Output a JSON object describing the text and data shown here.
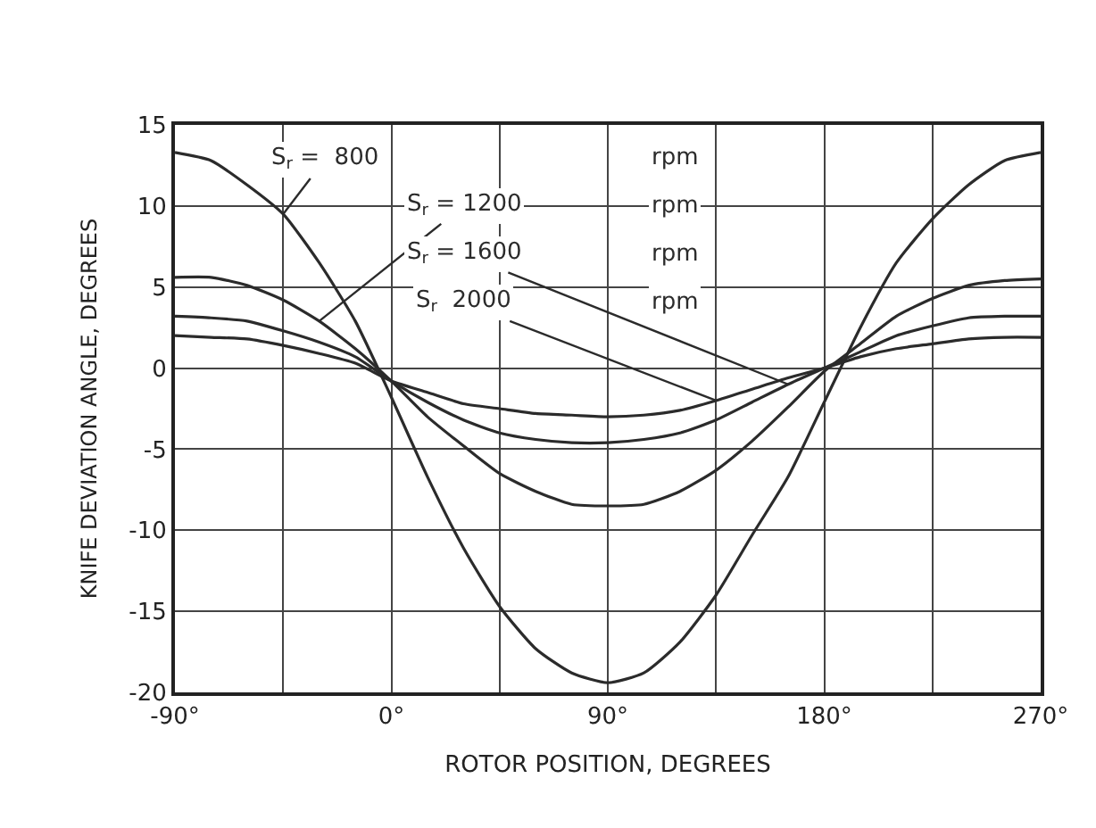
{
  "chart_data": {
    "type": "line",
    "xlabel": "ROTOR POSITION, DEGREES",
    "ylabel": "KNIFE DEVIATION ANGLE, DEGREES",
    "x": [
      -90,
      -75,
      -60,
      -45,
      -30,
      -15,
      0,
      15,
      30,
      45,
      60,
      75,
      90,
      105,
      120,
      135,
      150,
      165,
      180,
      195,
      210,
      225,
      240,
      255,
      270
    ],
    "series": [
      {
        "name": "S$_{r}$ =  800",
        "color": "#2b2b2b",
        "values": [
          13.3,
          12.8,
          11.3,
          9.5,
          6.5,
          2.9,
          -1.8,
          -6.7,
          -11.1,
          -14.7,
          -17.3,
          -18.8,
          -19.4,
          -18.8,
          -16.9,
          -14.0,
          -10.3,
          -6.7,
          -2.1,
          2.5,
          6.5,
          9.2,
          11.3,
          12.8,
          13.3
        ]
      },
      {
        "name": "S$_{r}$ = 1200",
        "color": "#2b2b2b",
        "values": [
          5.6,
          5.6,
          5.1,
          4.2,
          2.9,
          1.2,
          -0.8,
          -3.0,
          -4.8,
          -6.5,
          -7.6,
          -8.4,
          -8.5,
          -8.4,
          -7.6,
          -6.3,
          -4.5,
          -2.4,
          -0.2,
          1.5,
          3.2,
          4.3,
          5.1,
          5.4,
          5.5
        ]
      },
      {
        "name": "S$_{r}$ = 1600",
        "color": "#2b2b2b",
        "values": [
          3.2,
          3.1,
          2.9,
          2.3,
          1.6,
          0.7,
          -0.8,
          -2.1,
          -3.2,
          -4.0,
          -4.4,
          -4.6,
          -4.6,
          -4.4,
          -4.0,
          -3.2,
          -2.1,
          -1.0,
          0.0,
          1.0,
          2.0,
          2.6,
          3.1,
          3.2,
          3.2
        ]
      },
      {
        "name": "S$_{r}$  2000",
        "color": "#2b2b2b",
        "values": [
          2.0,
          1.9,
          1.8,
          1.4,
          0.9,
          0.3,
          -0.8,
          -1.5,
          -2.2,
          -2.5,
          -2.8,
          -2.9,
          -3.0,
          -2.9,
          -2.6,
          -2.0,
          -1.3,
          -0.6,
          0.0,
          0.7,
          1.2,
          1.5,
          1.8,
          1.9,
          1.9
        ]
      }
    ],
    "annotations": [
      "rpm",
      "rpm",
      "rpm",
      "rpm"
    ],
    "xlim": [
      -90,
      270
    ],
    "ylim": [
      -20,
      15
    ],
    "xticks": [
      {
        "value": -90,
        "label": "-90°"
      },
      {
        "value": -45,
        "label": null
      },
      {
        "value": 0,
        "label": "0°"
      },
      {
        "value": 45,
        "label": null
      },
      {
        "value": 90,
        "label": "90°"
      },
      {
        "value": 135,
        "label": null
      },
      {
        "value": 180,
        "label": "180°"
      },
      {
        "value": 225,
        "label": null
      },
      {
        "value": 270,
        "label": "270°"
      }
    ],
    "yticks": [
      -20,
      -15,
      -10,
      -5,
      0,
      5,
      10,
      15
    ],
    "grid": true,
    "legend": false,
    "marker": "none",
    "line_style": "solid"
  }
}
